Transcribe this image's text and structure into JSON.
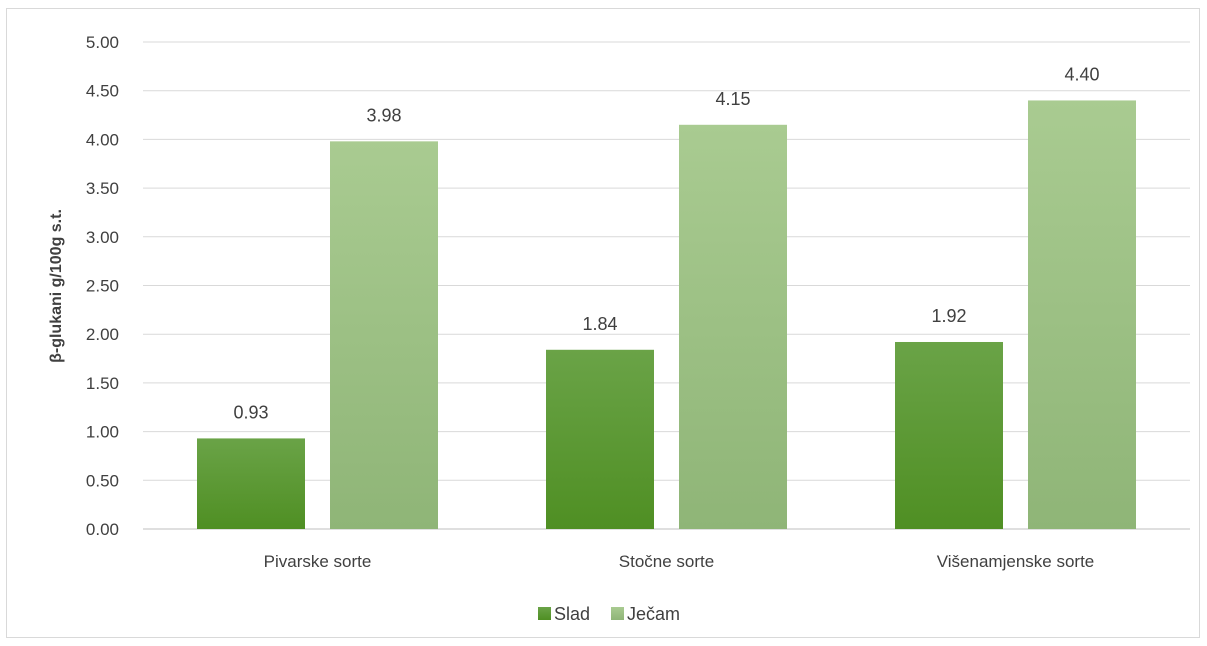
{
  "chart_data": {
    "type": "bar",
    "categories": [
      "Pivarske sorte",
      "Stočne sorte",
      "Višenamjenske sorte"
    ],
    "series": [
      {
        "name": "Slad",
        "values": [
          0.93,
          1.84,
          1.92
        ],
        "color": "#5a9a2e"
      },
      {
        "name": "Ječam",
        "values": [
          3.98,
          4.15,
          4.4
        ],
        "color": "#a6c78e"
      }
    ],
    "data_labels": [
      [
        "0.93",
        "1.84",
        "1.92"
      ],
      [
        "3.98",
        "4.15",
        "4.40"
      ]
    ],
    "ylabel": "β-glukani g/100g s.t.",
    "xlabel": "",
    "ylim": [
      0,
      5
    ],
    "yticks": [
      "0.00",
      "0.50",
      "1.00",
      "1.50",
      "2.00",
      "2.50",
      "3.00",
      "3.50",
      "4.00",
      "4.50",
      "5.00"
    ],
    "grid": true,
    "legend_position": "bottom"
  }
}
